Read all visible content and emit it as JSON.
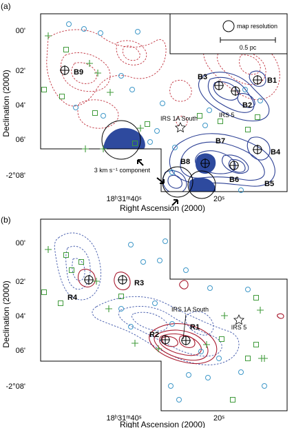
{
  "panels": [
    {
      "label": "(a)",
      "ytick_labels": [
        "00'",
        "02'",
        "04'",
        "06'",
        "-2°08'"
      ],
      "xtick_labels": [
        "18ʰ31ᵐ40ˢ",
        "20ˢ"
      ],
      "xlabel": "Right Ascension (2000)",
      "ylabel": "Declination (2000)",
      "legend": {
        "resolution_label": "map resolution",
        "scale_label": "0.5 pc"
      },
      "sources": [
        "B1",
        "B2",
        "B3",
        "B4",
        "B5",
        "B6",
        "B7",
        "B8",
        "B9"
      ],
      "annotations": {
        "irs1a": "IRS 1A South",
        "irs5": "IRS 5",
        "component": "3 km s⁻¹ component"
      }
    },
    {
      "label": "(b)",
      "ytick_labels": [
        "00'",
        "02'",
        "04'",
        "06'",
        "-2°08'"
      ],
      "xtick_labels": [
        "18ʰ31ᵐ40ˢ",
        "20ˢ"
      ],
      "xlabel": "Right Ascension (2000)",
      "ylabel": "Declination (2000)",
      "sources": [
        "R1",
        "R2",
        "R3",
        "R4"
      ],
      "annotations": {
        "irs1a": "IRS 1A South",
        "irs5": "IRS 5"
      }
    }
  ],
  "colors": {
    "red_contour": "#c0303c",
    "blue_contour": "#2b3f94",
    "blue_fill": "#2e4a9e",
    "circle_marker": "#3d97c8",
    "square_marker": "#3f9a3a",
    "plus_marker": "#3f9a3a"
  }
}
